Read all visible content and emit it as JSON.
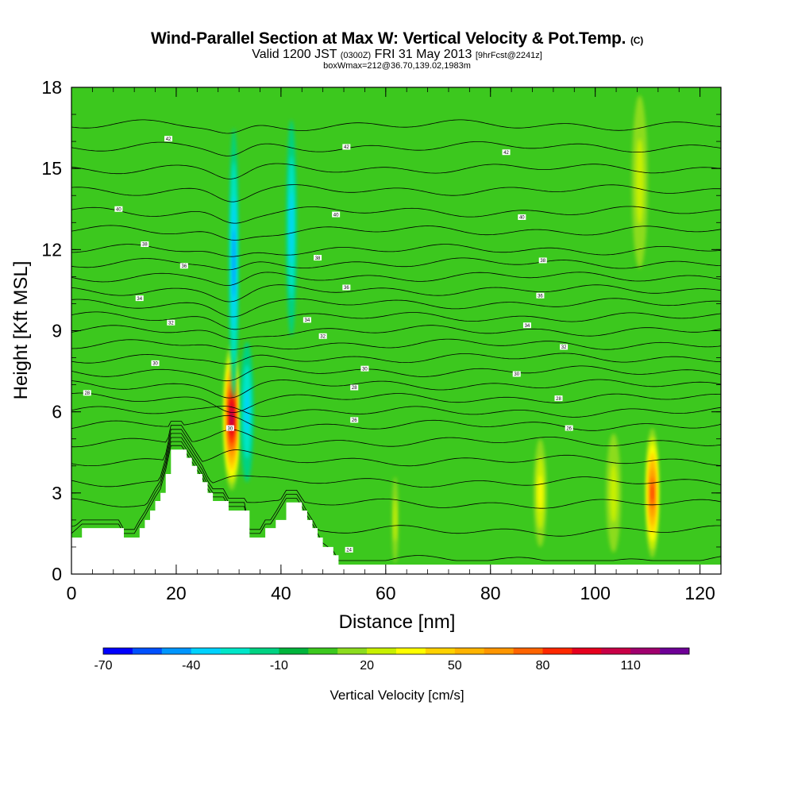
{
  "chart_data": {
    "type": "heatmap",
    "title": "Wind-Parallel Section at Max W: Vertical Velocity & Pot.Temp.",
    "title_suffix": "(C)",
    "subtitle_main": "Valid 1200 JST",
    "subtitle_utc": "(0300Z)",
    "subtitle_date": "FRI 31 May 2013",
    "subtitle_fcst": "[9hrFcst@2241z]",
    "subtitle2": "boxWmax=212@36.70,139.02,1983m",
    "xlabel": "Distance [nm]",
    "ylabel": "Height [Kft MSL]",
    "xlim": [
      0,
      124
    ],
    "ylim": [
      0,
      18
    ],
    "xticks": [
      "0",
      "20",
      "40",
      "60",
      "80",
      "100",
      "120"
    ],
    "yticks": [
      "0",
      "3",
      "6",
      "9",
      "12",
      "15",
      "18"
    ],
    "background_level_cm_s": 0,
    "colorbar": {
      "title": "Vertical Velocity [cm/s]",
      "tick_labels": [
        "-70",
        "-40",
        "-10",
        "20",
        "50",
        "80",
        "110"
      ],
      "min": -70,
      "max": 125,
      "step": 10,
      "colors": [
        "#0000ff",
        "#0050ff",
        "#0096ff",
        "#00d2ff",
        "#00e6c8",
        "#00d282",
        "#00b43c",
        "#3cc81e",
        "#8cdc1e",
        "#c8f000",
        "#ffff00",
        "#ffd200",
        "#ffb400",
        "#ff9600",
        "#ff6400",
        "#ff2800",
        "#e6001e",
        "#c80046",
        "#a0006e",
        "#6e0096"
      ]
    },
    "features": [
      {
        "x": 30.6,
        "y": 5.8,
        "w": 1.6,
        "h": 2.7,
        "value": 115
      },
      {
        "x": 31.0,
        "y": 11.5,
        "w": 0.9,
        "h": 5.0,
        "value": -45
      },
      {
        "x": 33.5,
        "y": 6.0,
        "w": 1.3,
        "h": 2.6,
        "value": -40
      },
      {
        "x": 42.0,
        "y": 12.8,
        "w": 1.0,
        "h": 4.0,
        "value": -35
      },
      {
        "x": 110.9,
        "y": 3.0,
        "w": 1.3,
        "h": 2.4,
        "value": 90
      },
      {
        "x": 89.5,
        "y": 3.0,
        "w": 1.2,
        "h": 2.0,
        "value": 35
      },
      {
        "x": 103.5,
        "y": 3.0,
        "w": 1.4,
        "h": 2.2,
        "value": 30
      },
      {
        "x": 61.8,
        "y": 2.0,
        "w": 0.6,
        "h": 1.6,
        "value": 30
      },
      {
        "x": 108.5,
        "y": 14.5,
        "w": 1.5,
        "h": 3.2,
        "value": 25
      }
    ],
    "terrain_kft": [
      [
        0,
        1.35
      ],
      [
        2,
        1.7
      ],
      [
        9,
        1.7
      ],
      [
        10,
        1.35
      ],
      [
        12,
        1.35
      ],
      [
        13,
        1.7
      ],
      [
        14,
        2.0
      ],
      [
        15,
        2.35
      ],
      [
        16,
        2.7
      ],
      [
        17,
        3.0
      ],
      [
        18,
        3.7
      ],
      [
        19,
        4.6
      ],
      [
        21,
        4.6
      ],
      [
        22,
        4.3
      ],
      [
        23,
        4.0
      ],
      [
        24,
        3.7
      ],
      [
        25,
        3.4
      ],
      [
        26,
        3.0
      ],
      [
        27,
        2.7
      ],
      [
        29,
        2.7
      ],
      [
        30,
        2.35
      ],
      [
        33,
        2.35
      ],
      [
        34,
        1.35
      ],
      [
        36,
        1.35
      ],
      [
        37,
        1.7
      ],
      [
        38,
        1.7
      ],
      [
        39,
        2.0
      ],
      [
        41,
        2.65
      ],
      [
        43,
        2.65
      ],
      [
        44,
        2.35
      ],
      [
        45,
        2.0
      ],
      [
        46,
        1.7
      ],
      [
        47,
        1.35
      ],
      [
        48,
        1.0
      ],
      [
        50,
        0.7
      ],
      [
        51,
        0.35
      ],
      [
        53,
        0.35
      ],
      [
        124,
        0.35
      ]
    ],
    "isentropes": {
      "base_y": [
        0.5,
        1.6,
        2.6,
        3.4,
        4.2,
        4.9,
        5.5,
        6.0,
        6.5,
        7.0,
        7.5,
        8.0,
        8.5,
        9.0,
        9.5,
        10.0,
        10.5,
        11.0,
        11.5,
        12.0,
        12.7,
        13.4,
        14.2,
        15.0,
        15.8,
        16.6
      ],
      "labels": [
        {
          "x": 3,
          "y": 6.7,
          "text": "28"
        },
        {
          "x": 16,
          "y": 7.8,
          "text": "30"
        },
        {
          "x": 19,
          "y": 9.3,
          "text": "32"
        },
        {
          "x": 13,
          "y": 10.2,
          "text": "34"
        },
        {
          "x": 21.5,
          "y": 11.4,
          "text": "36"
        },
        {
          "x": 14,
          "y": 12.2,
          "text": "38"
        },
        {
          "x": 9,
          "y": 13.5,
          "text": "40"
        },
        {
          "x": 18.5,
          "y": 16.1,
          "text": "42"
        },
        {
          "x": 30.3,
          "y": 5.4,
          "text": "30"
        },
        {
          "x": 48,
          "y": 8.8,
          "text": "32"
        },
        {
          "x": 45,
          "y": 9.4,
          "text": "34"
        },
        {
          "x": 52.5,
          "y": 10.6,
          "text": "36"
        },
        {
          "x": 47,
          "y": 11.7,
          "text": "38"
        },
        {
          "x": 50.5,
          "y": 13.3,
          "text": "40"
        },
        {
          "x": 52.5,
          "y": 15.8,
          "text": "42"
        },
        {
          "x": 54,
          "y": 5.7,
          "text": "26"
        },
        {
          "x": 54,
          "y": 6.9,
          "text": "28"
        },
        {
          "x": 56,
          "y": 7.6,
          "text": "30"
        },
        {
          "x": 53,
          "y": 0.9,
          "text": "24"
        },
        {
          "x": 95,
          "y": 5.4,
          "text": "26"
        },
        {
          "x": 93,
          "y": 6.5,
          "text": "28"
        },
        {
          "x": 85,
          "y": 7.4,
          "text": "30"
        },
        {
          "x": 94,
          "y": 8.4,
          "text": "32"
        },
        {
          "x": 87,
          "y": 9.2,
          "text": "34"
        },
        {
          "x": 89.5,
          "y": 10.3,
          "text": "36"
        },
        {
          "x": 90,
          "y": 11.6,
          "text": "38"
        },
        {
          "x": 86,
          "y": 13.2,
          "text": "40"
        },
        {
          "x": 83,
          "y": 15.6,
          "text": "42"
        }
      ]
    }
  }
}
